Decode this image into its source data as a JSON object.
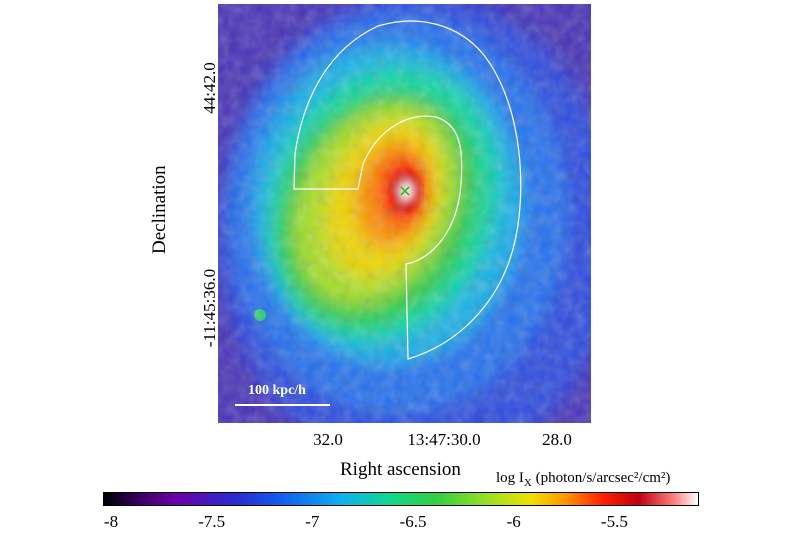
{
  "chart_data": {
    "type": "heatmap",
    "xlabel": "Right ascension",
    "ylabel": "Declination",
    "x_tick_labels": [
      "32.0",
      "13:47:30.0",
      "28.0"
    ],
    "y_tick_labels": [
      "44:42.0",
      "-11:45:36.0"
    ],
    "colorbar": {
      "label_text": "log I",
      "label_sub": "X",
      "label_units": "(photon/s/arcsec²/cm²)",
      "ticks": [
        "-8",
        "-7.5",
        "-7",
        "-6.5",
        "-6",
        "-5.5"
      ],
      "range": [
        -8.0,
        -5.05
      ],
      "colormap": [
        "#000000",
        "#6b00a8",
        "#1060f0",
        "#10d890",
        "#a0e020",
        "#f0e000",
        "#ff2000",
        "#ffffff"
      ]
    },
    "scale_bar_label": "100 kpc/h",
    "center_marker": "x",
    "center_marker_color": "#1ec81e",
    "region_outline_color": "#ffffff"
  }
}
